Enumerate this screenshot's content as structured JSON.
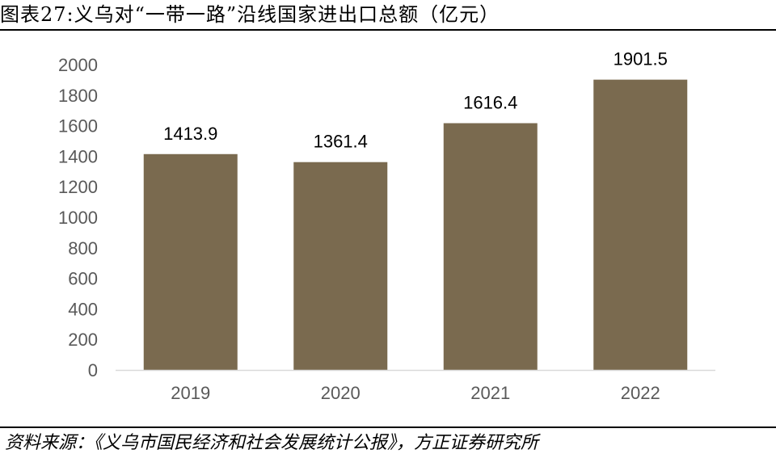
{
  "figure": {
    "title": "图表27:义乌对“一带一路”沿线国家进出口总额（亿元）",
    "source": "资料来源：《义乌市国民经济和社会发展统计公报》，方正证券研究所"
  },
  "chart_data": {
    "type": "bar",
    "categories": [
      "2019",
      "2020",
      "2021",
      "2022"
    ],
    "values": [
      1413.9,
      1361.4,
      1616.4,
      1901.5
    ],
    "value_labels": [
      "1413.9",
      "1361.4",
      "1616.4",
      "1901.5"
    ],
    "ylim": [
      0,
      2000
    ],
    "yticks": [
      0,
      200,
      400,
      600,
      800,
      1000,
      1200,
      1400,
      1600,
      1800,
      2000
    ],
    "grid": false,
    "legend": "none",
    "bar_color": "#7A6A4F",
    "axis_color": "#D9D9D9"
  }
}
